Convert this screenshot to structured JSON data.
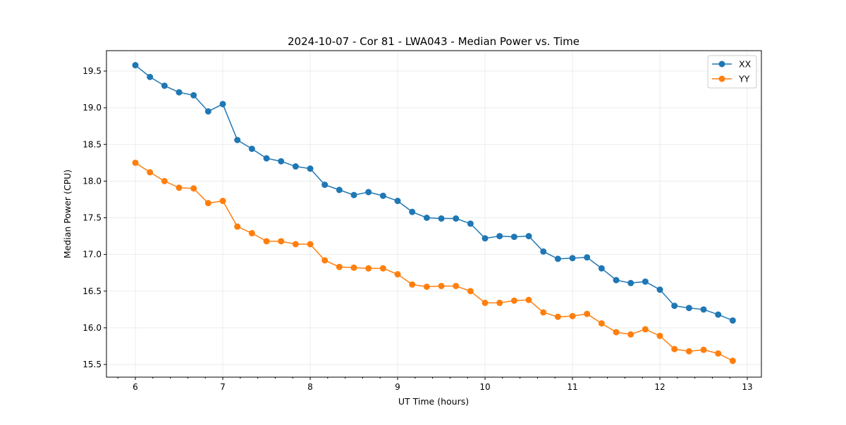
{
  "chart_data": {
    "type": "line",
    "title": "2024-10-07 - Cor 81 - LWA043 - Median Power vs. Time",
    "xlabel": "UT Time (hours)",
    "ylabel": "Median Power (CPU)",
    "xlim": [
      5.67,
      13.17
    ],
    "ylim": [
      15.36,
      19.77
    ],
    "xticks": [
      6,
      7,
      8,
      9,
      10,
      11,
      12,
      13
    ],
    "xtick_labels": [
      "6",
      "7",
      "8",
      "9",
      "10",
      "11",
      "12",
      "13"
    ],
    "yticks": [
      15.5,
      16.0,
      16.5,
      17.0,
      17.5,
      18.0,
      18.5,
      19.0,
      19.5
    ],
    "ytick_labels": [
      "15.5",
      "16.0",
      "16.5",
      "17.0",
      "17.5",
      "18.0",
      "18.5",
      "19.0",
      "19.5"
    ],
    "grid": true,
    "legend_position": "top-right",
    "x_start": 6.0,
    "x_step_hours": 0.16667,
    "series": [
      {
        "name": "XX",
        "color": "#1f77b4",
        "values": [
          19.58,
          19.42,
          19.3,
          19.21,
          19.17,
          18.95,
          19.05,
          18.56,
          18.44,
          18.31,
          18.27,
          18.2,
          18.17,
          17.95,
          17.88,
          17.81,
          17.85,
          17.8,
          17.73,
          17.58,
          17.5,
          17.49,
          17.49,
          17.42,
          17.22,
          17.25,
          17.24,
          17.25,
          17.04,
          16.94,
          16.95,
          16.96,
          16.81,
          16.65,
          16.61,
          16.63,
          16.52,
          16.3,
          16.27,
          16.25,
          16.18,
          16.1
        ]
      },
      {
        "name": "YY",
        "color": "#ff7f0e",
        "values": [
          18.25,
          18.12,
          18.0,
          17.91,
          17.9,
          17.7,
          17.73,
          17.38,
          17.29,
          17.18,
          17.18,
          17.14,
          17.14,
          16.92,
          16.83,
          16.82,
          16.81,
          16.81,
          16.73,
          16.59,
          16.56,
          16.57,
          16.57,
          16.5,
          16.34,
          16.34,
          16.37,
          16.38,
          16.21,
          16.15,
          16.16,
          16.19,
          16.06,
          15.94,
          15.91,
          15.98,
          15.89,
          15.71,
          15.68,
          15.7,
          15.65,
          15.55
        ]
      }
    ]
  }
}
